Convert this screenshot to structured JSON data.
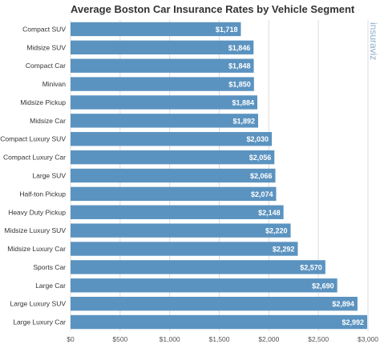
{
  "chart_data": {
    "type": "bar",
    "orientation": "horizontal",
    "title": "Average Boston Car Insurance Rates by Vehicle Segment",
    "watermark": "insuraviz",
    "categories": [
      "Compact SUV",
      "Midsize SUV",
      "Compact Car",
      "Minivan",
      "Midsize Pickup",
      "Midsize Car",
      "Compact Luxury SUV",
      "Compact Luxury Car",
      "Large SUV",
      "Half-ton Pickup",
      "Heavy Duty Pickup",
      "Midsize Luxury SUV",
      "Midsize Luxury Car",
      "Sports Car",
      "Large Car",
      "Large Luxury SUV",
      "Large Luxury Car"
    ],
    "values": [
      1718,
      1846,
      1848,
      1850,
      1884,
      1892,
      2030,
      2056,
      2066,
      2074,
      2148,
      2220,
      2292,
      2570,
      2690,
      2894,
      2992
    ],
    "value_labels": [
      "$1,718",
      "$1,846",
      "$1,848",
      "$1,850",
      "$1,884",
      "$1,892",
      "$2,030",
      "$2,056",
      "$2,066",
      "$2,074",
      "$2,148",
      "$2,220",
      "$2,292",
      "$2,570",
      "$2,690",
      "$2,894",
      "$2,992"
    ],
    "xlim": [
      0,
      3000
    ],
    "xticks": [
      0,
      500,
      1000,
      1500,
      2000,
      2500,
      3000
    ],
    "xtick_labels": [
      "$0",
      "$500",
      "$1,000",
      "$1,500",
      "$2,000",
      "$2,500",
      "$3,000"
    ],
    "grid": true,
    "bar_color": "#5b93c0",
    "xlabel": "",
    "ylabel": ""
  }
}
